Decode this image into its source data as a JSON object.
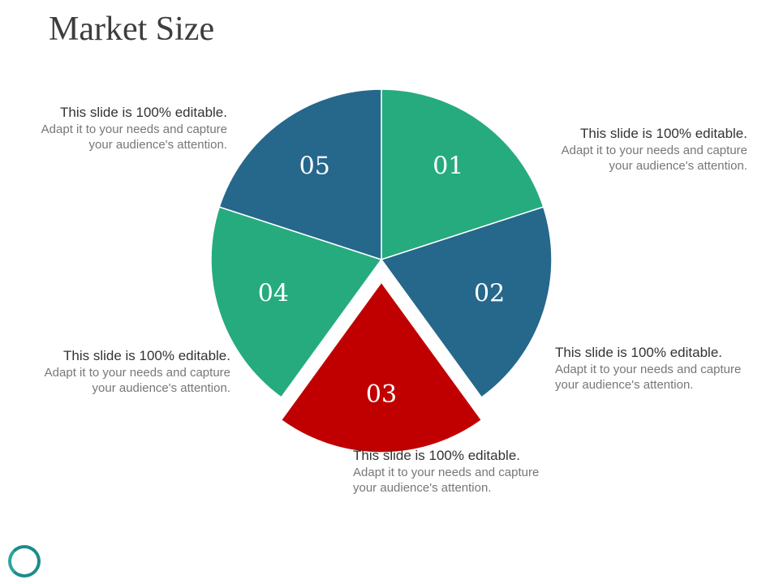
{
  "page": {
    "title": "Market Size"
  },
  "chart_data": {
    "type": "pie",
    "categories": [
      "01",
      "02",
      "03",
      "04",
      "05"
    ],
    "values": [
      20,
      20,
      20,
      20,
      20
    ],
    "colors": [
      "#26ab7e",
      "#26678c",
      "#c00000",
      "#26ab7e",
      "#26678c"
    ],
    "exploded": [
      "03"
    ],
    "annotations": [
      {
        "segment": "01",
        "heading": "This slide is 100% editable.",
        "text": "Adapt it to your needs and capture your audience's attention."
      },
      {
        "segment": "02",
        "heading": "This slide is 100% editable.",
        "text": "Adapt it to your needs and capture your audience's attention."
      },
      {
        "segment": "03",
        "heading": "This slide is 100% editable.",
        "text": "Adapt it to your needs and capture your audience's attention."
      },
      {
        "segment": "04",
        "heading": "This slide is 100% editable.",
        "text": "Adapt it to your needs and capture your audience's attention."
      },
      {
        "segment": "05",
        "heading": "This slide is 100% editable.",
        "text": "Adapt it to your needs and capture your audience's attention."
      }
    ]
  },
  "decor": {
    "ring_color": "#1c8c8c",
    "ring_icon": "circle-ring-icon"
  }
}
